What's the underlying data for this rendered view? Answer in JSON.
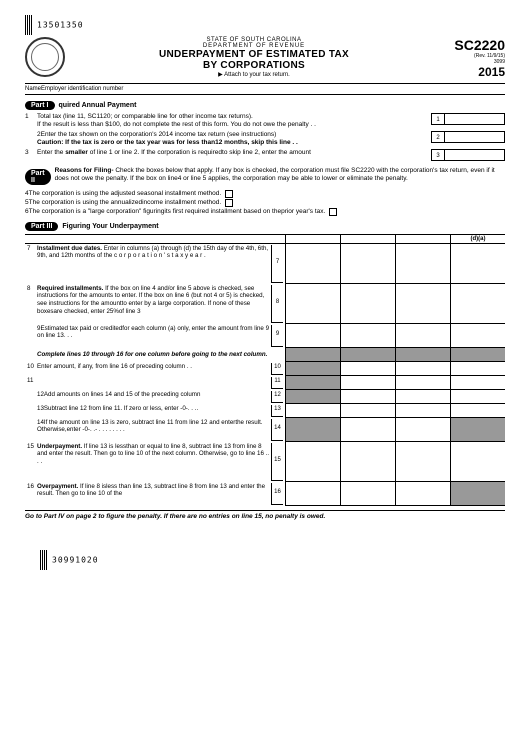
{
  "top_code": "13501350",
  "bottom_code": "30991020",
  "header": {
    "state": "STATE OF SOUTH CAROLINA",
    "dept": "DEPARTMENT OF REVENUE",
    "title1": "UNDERPAYMENT OF ESTIMATED TAX",
    "title2": "BY CORPORATIONS",
    "attach": "▶ Attach to your tax return.",
    "form_code": "SC2220",
    "rev": "(Rev. 11/9/15)",
    "form_num": "3099",
    "year": "2015"
  },
  "name_label": "NameEmployer identification number",
  "parts": {
    "p1": {
      "badge": "Part I",
      "title": "quired Annual Payment"
    },
    "p2": {
      "badge": "Part II",
      "title": "Reasons for Filing-"
    },
    "p3": {
      "badge": "Part III",
      "title": "Figuring Your Underpayment"
    }
  },
  "lines": {
    "l1a": "Total tax (line 11, SC1120; or comparable line for other income tax returns).",
    "l1b": "If the result is less than $100, do not complete the rest of this form. You do not owe the penalty . .",
    "l2": "2Enter the tax shown on the corporation's 2014 income tax return (see instructions)",
    "l2caution": "Caution: If the tax is zero or the tax year was for less than12 months, skip this line . .",
    "l3": "Enter the smaller of line 1 or line 2. If the corporation is requiredto skip line 2, enter the amount"
  },
  "part2_intro": "Check the boxes below that apply. If any box is checked, the corporation must file SC2220 with the corporation's tax return, even if it does not owe the penalty. If the box on line4 or line 5 applies, the corporation may be able to lower or eliminate the penalty.",
  "checkboxes": {
    "l4": "4The corporation is using the adjusted seasonal installment method.",
    "l5": "5The corporation is using the annualizedincome installment method.",
    "l6": "6The corporation is a \"large corporation\" figuringits first required installment based on theprior year's tax."
  },
  "col_header": "(d)(a)",
  "grid_rows": {
    "r7": {
      "num": "7",
      "title": "Installment due dates.",
      "text": " Enter in columns (a) through (d) the 15th day of the 4th, 6th, 9th, and 12th months of the c o r p o r a t i o n ' s t a x y e a r .",
      "box": "7"
    },
    "r8": {
      "num": "8",
      "title": "Required installments.",
      "text": " If the box on line 4 and/or line 5 above is checked, see instructions for the amounts to enter. If the box on line 6 (but not 4 or 5) is checked, see instructions for the amountto enter by a large corporation. If none of these boxesare checked, enter 25%of line 3",
      "box": "8"
    },
    "r9": {
      "num": "",
      "text": "9Estimated tax paid or creditedfor each column (a) only, enter the amount from line 9 on line 13. . .",
      "box": "9"
    },
    "complete": "Complete lines 10 through 16 for one column before going to the next column.",
    "r10": {
      "num": "10",
      "text": "Enter amount, if any, from line 16 of preceding column . .",
      "box": "10"
    },
    "r11": {
      "num": "11",
      "text": "",
      "box": "11"
    },
    "r12": {
      "num": "",
      "text": "12Add amounts on lines 14 and 15 of the preceding column",
      "box": "12"
    },
    "r13": {
      "num": "",
      "text": "13Subtract line 12 from line 11. If zero or less, enter -0-. . ..",
      "box": "13"
    },
    "r14": {
      "num": "",
      "text": "14If the amount on line 13 is zero, subtract line 11 from line 12 and enterthe result. Otherwise,enter -0-. .- . . . . . . . .",
      "box": "14"
    },
    "r15": {
      "num": "15",
      "title": "Underpayment.",
      "text": " If line 13 is lessthan or equal to line 8, subtract line 13 from line 8 and enter the result. Then go to line 10 of the next column. Otherwise, go to line 16 .. . .",
      "box": "15"
    },
    "r16": {
      "num": "16",
      "title": "Overpayment.",
      "text": " If line 8 isless than line 13, subtract line 8 from line 13 and enter the result. Then go to line 10 of the",
      "box": "16"
    }
  },
  "footer": "Go to Part IV on page 2 to figure the penalty. If there are no entries on line 15, no penalty is owed."
}
